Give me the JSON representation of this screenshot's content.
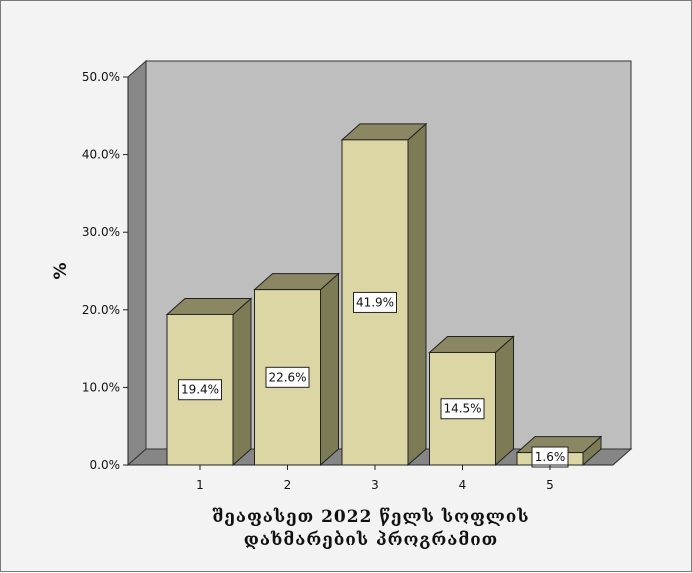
{
  "chart_data": {
    "type": "bar",
    "categories": [
      "1",
      "2",
      "3",
      "4",
      "5"
    ],
    "values": [
      19.4,
      22.6,
      41.9,
      14.5,
      1.6
    ],
    "data_labels": [
      "19.4%",
      "22.6%",
      "41.9%",
      "14.5%",
      "1.6%"
    ],
    "ylabel": "%",
    "xlabel_lines": [
      "შეაფასეთ 2022 წელს სოფლის",
      "დახმარების პროგრამით"
    ],
    "ylim": [
      0,
      50
    ],
    "yticks": [
      0,
      10,
      20,
      30,
      40,
      50
    ],
    "ytick_labels": [
      "0.0%",
      "10.0%",
      "20.0%",
      "30.0%",
      "40.0%",
      "50.0%"
    ],
    "grid": false,
    "style": "3d",
    "colors": {
      "bar_front": "#dcd6a4",
      "bar_top": "#8a8762",
      "bar_side": "#7d7a56",
      "plot_back": "#bebebe",
      "plot_wall": "#878787",
      "plot_floor": "#868686",
      "frame_bg": "#f3f3f3"
    }
  }
}
